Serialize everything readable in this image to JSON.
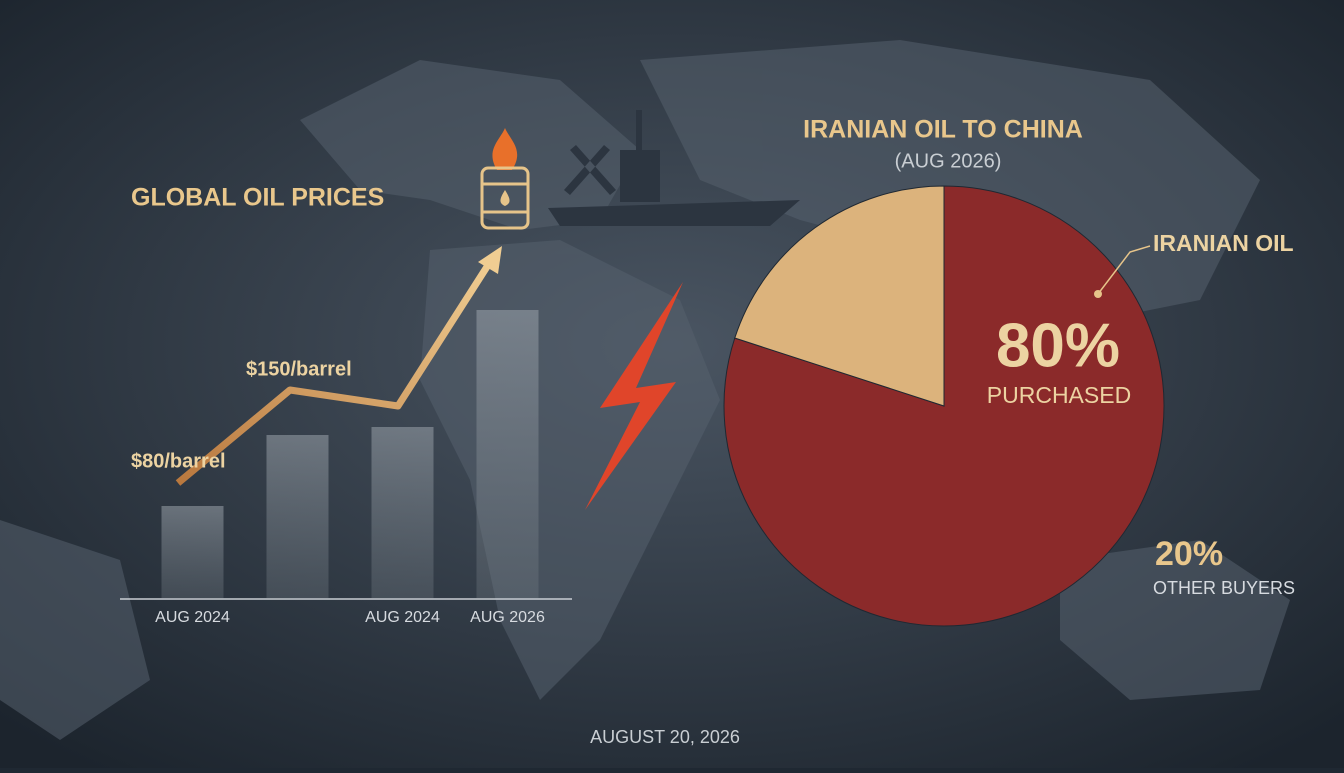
{
  "chart_data": [
    {
      "type": "bar",
      "title": "GLOBAL OIL PRICES",
      "categories": [
        "AUG 2024",
        null,
        "AUG 2024",
        "AUG 2026"
      ],
      "values": [
        92,
        163,
        171,
        288
      ],
      "color": "#8a939c",
      "ylim": [
        0,
        300
      ],
      "annotations": [
        "$80/barrel",
        "$150/barrel"
      ]
    },
    {
      "type": "pie",
      "title": "IRANIAN OIL TO CHINA",
      "subtitle": "(AUG 2026)",
      "categories": [
        "IRANIAN OIL",
        "OTHER BUYERS"
      ],
      "values": [
        80,
        20
      ],
      "value_labels": [
        "80%",
        "20%"
      ],
      "colors": [
        "#8b2a2a",
        "#dcb37c"
      ],
      "annotations": [
        "PURCHASED"
      ]
    }
  ],
  "date": "AUGUST 20, 2026"
}
